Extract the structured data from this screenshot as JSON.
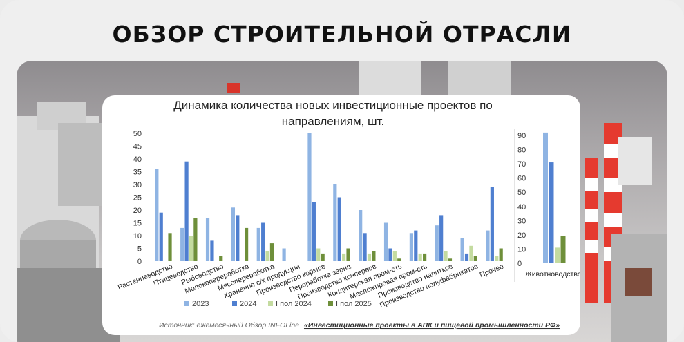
{
  "page": {
    "title": "ОБЗОР СТРОИТЕЛЬНОЙ ОТРАСЛИ"
  },
  "chart_data": [
    {
      "type": "bar",
      "title": "Динамика количества новых инвестиционные проектов по направлениям, шт.",
      "title_lines": [
        "Динамика количества новых инвестиционные проектов по",
        "направлениям, шт."
      ],
      "categories": [
        "Растениеводство",
        "Птицеводство",
        "Рыбоводство",
        "Молокопереработка",
        "Мясопереработка",
        "Хранение с/х продукции",
        "Производство кормов",
        "Переработка зерна",
        "Производство консервов",
        "Кондитерская пром-сть",
        "Масложировая пром-сть",
        "Производство напитков",
        "Производство полуфабрикатов",
        "Прочее"
      ],
      "series": [
        {
          "name": "2023",
          "color": "#8fb4e3",
          "values": [
            36,
            13,
            17,
            21,
            13,
            5,
            50,
            30,
            20,
            15,
            11,
            14,
            9,
            12
          ]
        },
        {
          "name": "2024",
          "color": "#4f7fd0",
          "values": [
            19,
            39,
            8,
            18,
            15,
            0,
            23,
            25,
            11,
            5,
            12,
            18,
            3,
            29
          ]
        },
        {
          "name": "I пол 2024",
          "color": "#c4dba0",
          "values": [
            0,
            10,
            0,
            0,
            4,
            0,
            5,
            3,
            3,
            4,
            3,
            4,
            6,
            2
          ]
        },
        {
          "name": "I пол 2025",
          "color": "#6e8f3a",
          "values": [
            11,
            17,
            2,
            13,
            7,
            0,
            3,
            5,
            4,
            1,
            3,
            1,
            2,
            5
          ]
        }
      ],
      "ylim": [
        0,
        50
      ],
      "yticks": [
        0,
        5,
        10,
        15,
        20,
        25,
        30,
        35,
        40,
        45,
        50
      ],
      "legend": "bottom",
      "grid": false,
      "source_prefix": "Источник: ежемесячный Обзор INFOLine",
      "source_title": "«Инвестиционные проекты в АПК и пищевой промышленности РФ»"
    },
    {
      "type": "bar",
      "categories": [
        "Животноводство"
      ],
      "series": [
        {
          "name": "2023",
          "color": "#8fb4e3",
          "values": [
            92
          ]
        },
        {
          "name": "2024",
          "color": "#4f7fd0",
          "values": [
            71
          ]
        },
        {
          "name": "I пол 2024",
          "color": "#c4dba0",
          "values": [
            11
          ]
        },
        {
          "name": "I пол 2025",
          "color": "#6e8f3a",
          "values": [
            19
          ]
        }
      ],
      "ylim": [
        0,
        90
      ],
      "yticks": [
        0,
        10,
        20,
        30,
        40,
        50,
        60,
        70,
        80,
        90
      ],
      "grid": false
    }
  ]
}
